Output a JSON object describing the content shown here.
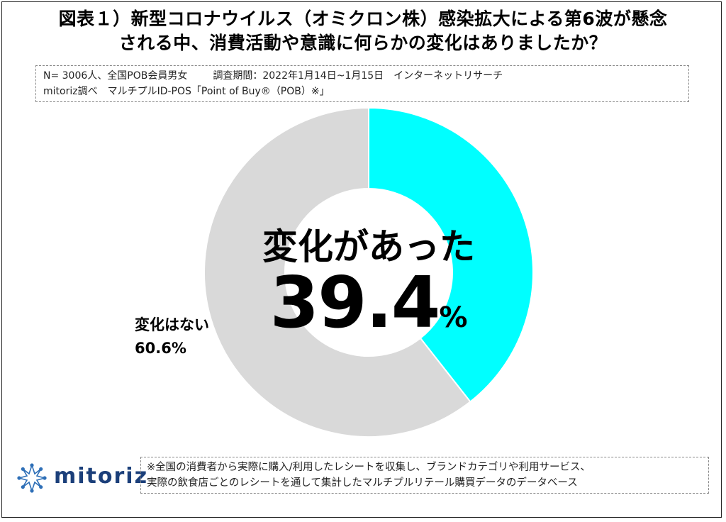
{
  "title": {
    "line1": "図表１）新型コロナウイルス（オミクロン株）感染拡大による第6波が懸念",
    "line2": "される中、消費活動や意識に何らかの変化はありましたか？"
  },
  "info": {
    "sample": "N= 3006人、全国POB会員男女",
    "period": "調査期間：2022年1月14日~1月15日",
    "method": "インターネットリサーチ",
    "surveyor": "mitoriz調べ",
    "source": "マルチプルID-POS「Point of Buy®（POB）※」"
  },
  "chart_data": {
    "type": "pie",
    "donut": true,
    "categories": [
      "変化があった",
      "変化はない"
    ],
    "values": [
      39.4,
      60.6
    ],
    "unit": "%",
    "colors": [
      "#00FFFF",
      "#D9D9D9"
    ],
    "center_label": "変化があった",
    "center_value": "39.4",
    "center_unit": "%",
    "slice_label_name": "変化はない",
    "slice_label_value": "60.6%"
  },
  "brand": {
    "name": "mitoriz",
    "color": "#1B3F7A"
  },
  "footnote": {
    "line1": "※全国の消費者から実際に購入/利用したレシートを収集し、ブランドカテゴリや利用サービス、",
    "line2": "実際の飲食店ごとのレシートを通して集計したマルチプルリテール購買データのデータベース"
  }
}
